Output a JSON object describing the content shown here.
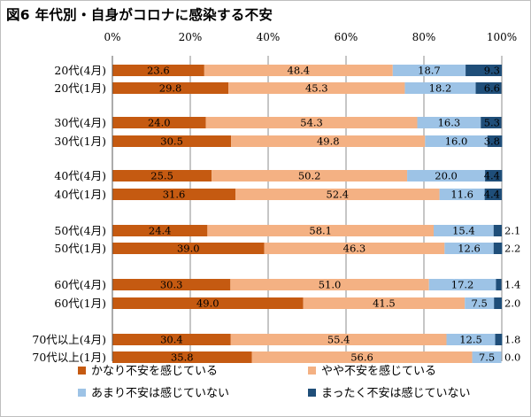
{
  "chart_data": {
    "type": "bar",
    "orientation": "horizontal",
    "stacked": true,
    "percent_scale": true,
    "title": "図6 年代別・自身がコロナに感染する不安",
    "categories": [
      "20代(4月)",
      "20代(1月)",
      "30代(4月)",
      "30代(1月)",
      "40代(4月)",
      "40代(1月)",
      "50代(4月)",
      "50代(1月)",
      "60代(4月)",
      "60代(1月)",
      "70代以上(4月)",
      "70代以上(1月)"
    ],
    "xlim": [
      0,
      100
    ],
    "x_ticks": [
      "0%",
      "20%",
      "40%",
      "60%",
      "80%",
      "100%"
    ],
    "grid": true,
    "legend_position": "bottom",
    "series": [
      {
        "name": "かなり不安を感じている",
        "color": "#c55a11",
        "values": [
          23.6,
          29.8,
          24.0,
          30.5,
          25.5,
          31.6,
          24.4,
          39.0,
          30.3,
          49.0,
          30.4,
          35.8
        ]
      },
      {
        "name": "やや不安を感じている",
        "color": "#f4b183",
        "values": [
          48.4,
          45.3,
          54.3,
          49.8,
          50.2,
          52.4,
          58.1,
          46.3,
          51.0,
          41.5,
          55.4,
          56.6
        ]
      },
      {
        "name": "あまり不安は感じていない",
        "color": "#9dc3e6",
        "values": [
          18.7,
          18.2,
          16.3,
          16.0,
          20.0,
          11.6,
          15.4,
          12.6,
          17.2,
          7.5,
          12.5,
          7.5
        ]
      },
      {
        "name": "まったく不安は感じていない",
        "color": "#1f4e79",
        "values": [
          9.3,
          6.6,
          5.3,
          3.8,
          4.4,
          4.4,
          2.1,
          2.2,
          1.4,
          2.0,
          1.8,
          0.0
        ]
      }
    ]
  }
}
